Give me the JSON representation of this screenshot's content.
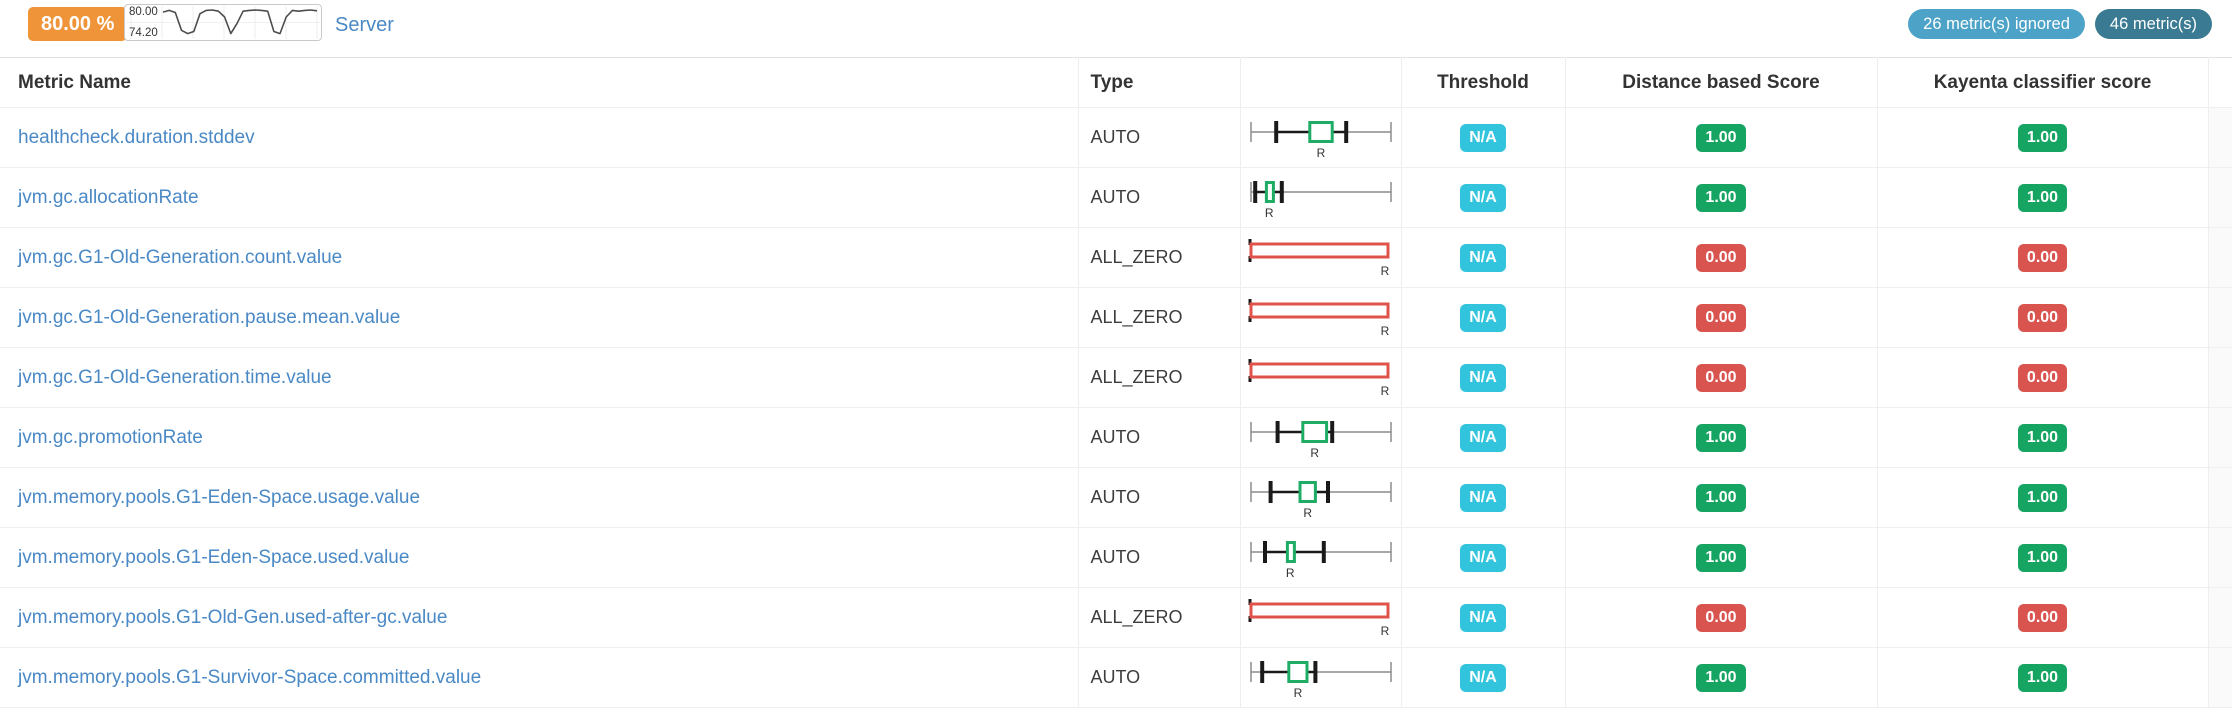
{
  "summary": {
    "canary_score": "80.00 %",
    "sparkline": {
      "y_max_label": "80.00",
      "y_min_label": "74.20",
      "y_min": 74.2,
      "y_max": 80,
      "values": [
        79.5,
        79.9,
        79.4,
        75.1,
        74.3,
        74.8,
        79.1,
        79.9,
        80,
        79.7,
        78.3,
        74.3,
        76.7,
        79.7,
        79.9,
        80,
        79.9,
        79.7,
        74.8,
        74.3,
        78.3,
        79.9,
        79.7,
        79.9,
        80,
        79.8
      ]
    },
    "server_label": "Server",
    "ignored_badge": "26 metric(s) ignored",
    "count_badge": "46 metric(s)"
  },
  "colors": {
    "accent_orange": "#ef9439",
    "link_blue": "#4a89c5",
    "badge_cyan": "#32c3dd",
    "badge_green": "#16a462",
    "badge_red": "#d9534f",
    "badge_light_blue": "#4da3c7",
    "badge_dark_blue": "#3a7a92",
    "box_green": "#1fad66",
    "box_red": "#e0534a"
  },
  "table": {
    "headers": {
      "metric_name": "Metric Name",
      "type": "Type",
      "plot": "",
      "threshold": "Threshold",
      "distance_score": "Distance based Score",
      "classifier_score": "Kayenta classifier score"
    },
    "rows": [
      {
        "name": "healthcheck.duration.stddev",
        "type": "AUTO",
        "threshold": "N/A",
        "distance_score": "1.00",
        "classifier_score": "1.00",
        "status": "pass",
        "boxplot": {
          "kind": "range",
          "ticks": [
            0.18,
            0.68
          ],
          "box": [
            0.42,
            0.58
          ],
          "label": "R",
          "label_pos": 0.5
        }
      },
      {
        "name": "jvm.gc.allocationRate",
        "type": "AUTO",
        "threshold": "N/A",
        "distance_score": "1.00",
        "classifier_score": "1.00",
        "status": "pass",
        "boxplot": {
          "kind": "range",
          "ticks": [
            0.03,
            0.22
          ],
          "box": [
            0.11,
            0.16
          ],
          "label": "R",
          "label_pos": 0.13
        }
      },
      {
        "name": "jvm.gc.G1-Old-Generation.count.value",
        "type": "ALL_ZERO",
        "threshold": "N/A",
        "distance_score": "0.00",
        "classifier_score": "0.00",
        "status": "fail",
        "boxplot": {
          "kind": "zero",
          "label": "R"
        }
      },
      {
        "name": "jvm.gc.G1-Old-Generation.pause.mean.value",
        "type": "ALL_ZERO",
        "threshold": "N/A",
        "distance_score": "0.00",
        "classifier_score": "0.00",
        "status": "fail",
        "boxplot": {
          "kind": "zero",
          "label": "R"
        }
      },
      {
        "name": "jvm.gc.G1-Old-Generation.time.value",
        "type": "ALL_ZERO",
        "threshold": "N/A",
        "distance_score": "0.00",
        "classifier_score": "0.00",
        "status": "fail",
        "boxplot": {
          "kind": "zero",
          "label": "R"
        }
      },
      {
        "name": "jvm.gc.promotionRate",
        "type": "AUTO",
        "threshold": "N/A",
        "distance_score": "1.00",
        "classifier_score": "1.00",
        "status": "pass",
        "boxplot": {
          "kind": "range",
          "ticks": [
            0.19,
            0.58
          ],
          "box": [
            0.37,
            0.54
          ],
          "label": "R",
          "label_pos": 0.455
        }
      },
      {
        "name": "jvm.memory.pools.G1-Eden-Space.usage.value",
        "type": "AUTO",
        "threshold": "N/A",
        "distance_score": "1.00",
        "classifier_score": "1.00",
        "status": "pass",
        "boxplot": {
          "kind": "range",
          "ticks": [
            0.14,
            0.55
          ],
          "box": [
            0.35,
            0.46
          ],
          "label": "R",
          "label_pos": 0.405
        }
      },
      {
        "name": "jvm.memory.pools.G1-Eden-Space.used.value",
        "type": "AUTO",
        "threshold": "N/A",
        "distance_score": "1.00",
        "classifier_score": "1.00",
        "status": "pass",
        "boxplot": {
          "kind": "range",
          "ticks": [
            0.1,
            0.52
          ],
          "box": [
            0.26,
            0.3
          ],
          "label": "R",
          "label_pos": 0.28
        }
      },
      {
        "name": "jvm.memory.pools.G1-Old-Gen.used-after-gc.value",
        "type": "ALL_ZERO",
        "threshold": "N/A",
        "distance_score": "0.00",
        "classifier_score": "0.00",
        "status": "fail",
        "boxplot": {
          "kind": "zero",
          "label": "R"
        }
      },
      {
        "name": "jvm.memory.pools.G1-Survivor-Space.committed.value",
        "type": "AUTO",
        "threshold": "N/A",
        "distance_score": "1.00",
        "classifier_score": "1.00",
        "status": "pass",
        "boxplot": {
          "kind": "range",
          "ticks": [
            0.08,
            0.46
          ],
          "box": [
            0.27,
            0.4
          ],
          "label": "R",
          "label_pos": 0.335
        }
      }
    ]
  }
}
